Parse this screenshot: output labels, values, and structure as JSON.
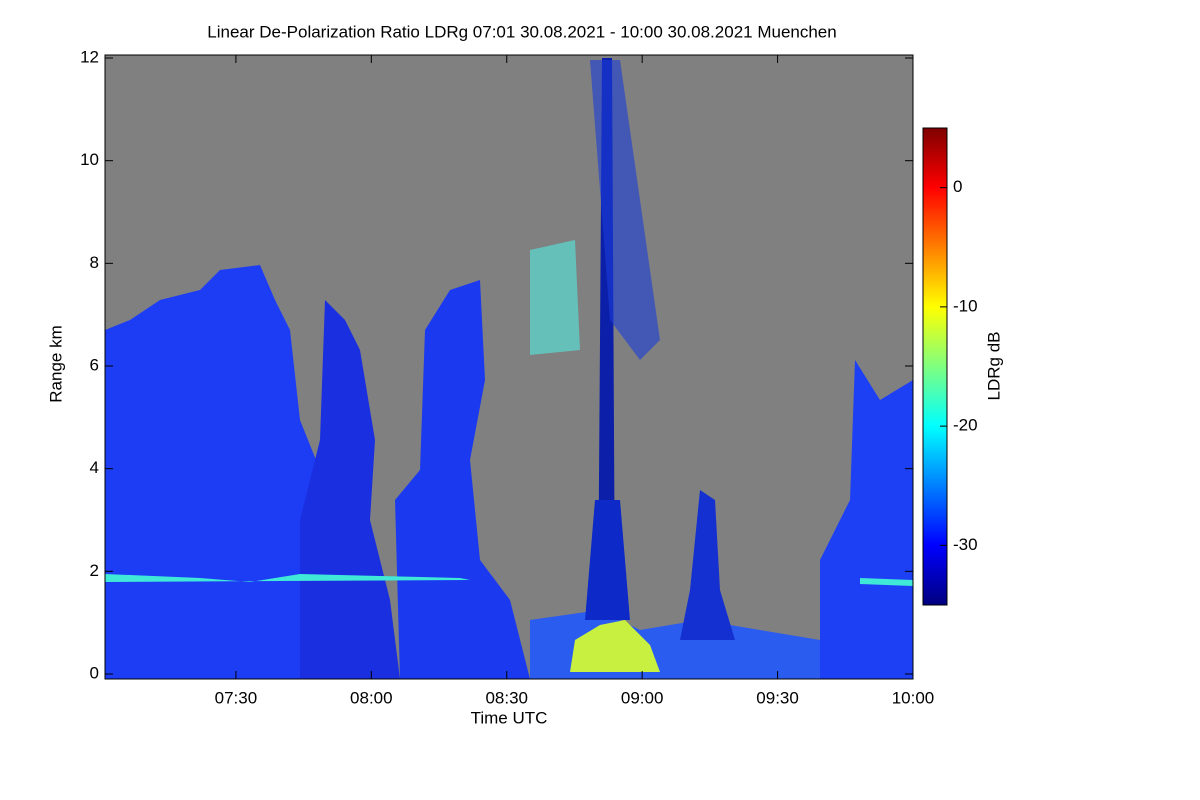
{
  "chart_data": {
    "type": "heatmap",
    "title": "Linear De-Polarization Ratio LDRg   07:01 30.08.2021 - 10:00 30.08.2021 Muenchen",
    "x_label": "Time UTC",
    "y_label": "Range km",
    "xlim": [
      "07:01",
      "10:00"
    ],
    "xticks": [
      "07:30",
      "08:00",
      "08:30",
      "09:00",
      "09:30",
      "10:00"
    ],
    "ylim": [
      0,
      12
    ],
    "yticks": [
      0,
      2,
      4,
      6,
      8,
      10,
      12
    ],
    "background": "#808080",
    "colorbar": {
      "label": "LDRg dB",
      "colormap": "jet",
      "lim": [
        -35,
        5
      ],
      "ticks": [
        0,
        -10,
        -20,
        -30
      ]
    }
  }
}
